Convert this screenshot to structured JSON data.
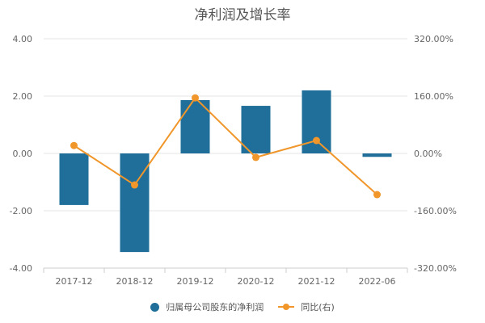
{
  "chart_data": {
    "type": "bar",
    "title": "净利润及增长率",
    "categories": [
      "2017-12",
      "2018-12",
      "2019-12",
      "2020-12",
      "2021-12",
      "2022-06"
    ],
    "series": [
      {
        "name": "归属母公司股东的净利润",
        "type": "bar",
        "axis": "left",
        "color": "#1f6f9a",
        "values": [
          -1.8,
          -3.44,
          1.86,
          1.66,
          2.2,
          -0.12
        ]
      },
      {
        "name": "同比(右)",
        "type": "line",
        "axis": "right",
        "color": "#f0962a",
        "values": [
          22.0,
          -88.0,
          155.0,
          -11.0,
          36.0,
          -115.0
        ]
      }
    ],
    "left_axis": {
      "ticks": [
        "4.00",
        "2.00",
        "0.00",
        "-2.00",
        "-4.00"
      ],
      "range": [
        -4,
        4
      ]
    },
    "right_axis": {
      "ticks": [
        "320.00%",
        "160.00%",
        "0.00%",
        "-160.00%",
        "-320.00%"
      ],
      "range": [
        -320,
        320
      ]
    },
    "xlabel": "",
    "ylabel": "",
    "grid": true,
    "legend_position": "bottom"
  },
  "legend": {
    "bar_label": "归属母公司股东的净利润",
    "line_label": "同比(右)"
  }
}
